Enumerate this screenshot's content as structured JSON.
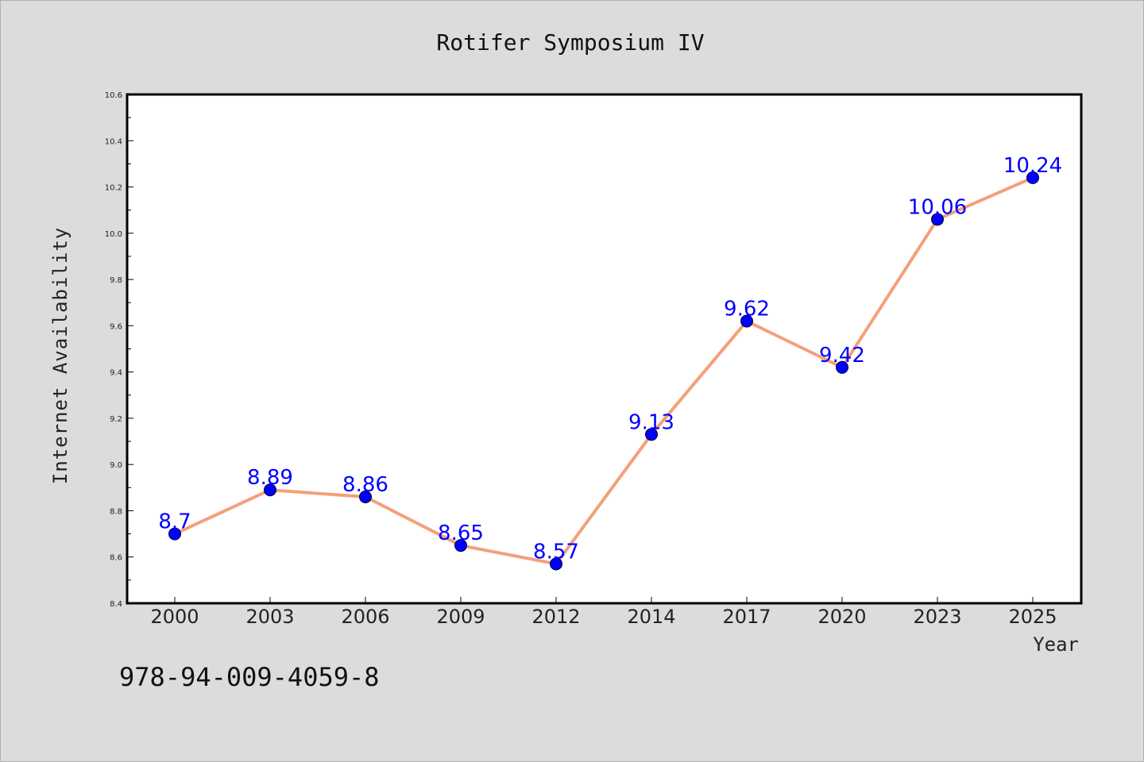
{
  "chart_data": {
    "type": "line",
    "title": "Rotifer Symposium IV",
    "xlabel": "Year",
    "ylabel": "Internet Availability",
    "categories": [
      "2000",
      "2003",
      "2006",
      "2009",
      "2012",
      "2014",
      "2017",
      "2020",
      "2023",
      "2025"
    ],
    "values": [
      8.7,
      8.89,
      8.86,
      8.65,
      8.57,
      9.13,
      9.62,
      9.42,
      10.06,
      10.24
    ],
    "data_labels": [
      "8.7",
      "8.89",
      "8.86",
      "8.65",
      "8.57",
      "9.13",
      "9.62",
      "9.42",
      "10.06",
      "10.24"
    ],
    "ylim": [
      8.4,
      10.6
    ],
    "yticks": [
      "8.4",
      "8.6",
      "8.8",
      "9.0",
      "9.2",
      "9.4",
      "9.6",
      "9.8",
      "10.0",
      "10.2",
      "10.4",
      "10.6"
    ],
    "grid": false,
    "legend": "none",
    "line_color": "#f4a07a",
    "marker_color": "#0000ff",
    "label_color": "#0000ff",
    "background_color": "#dcdcdc",
    "plot_background": "#ffffff"
  },
  "footer": {
    "isbn": "978-94-009-4059-8"
  }
}
